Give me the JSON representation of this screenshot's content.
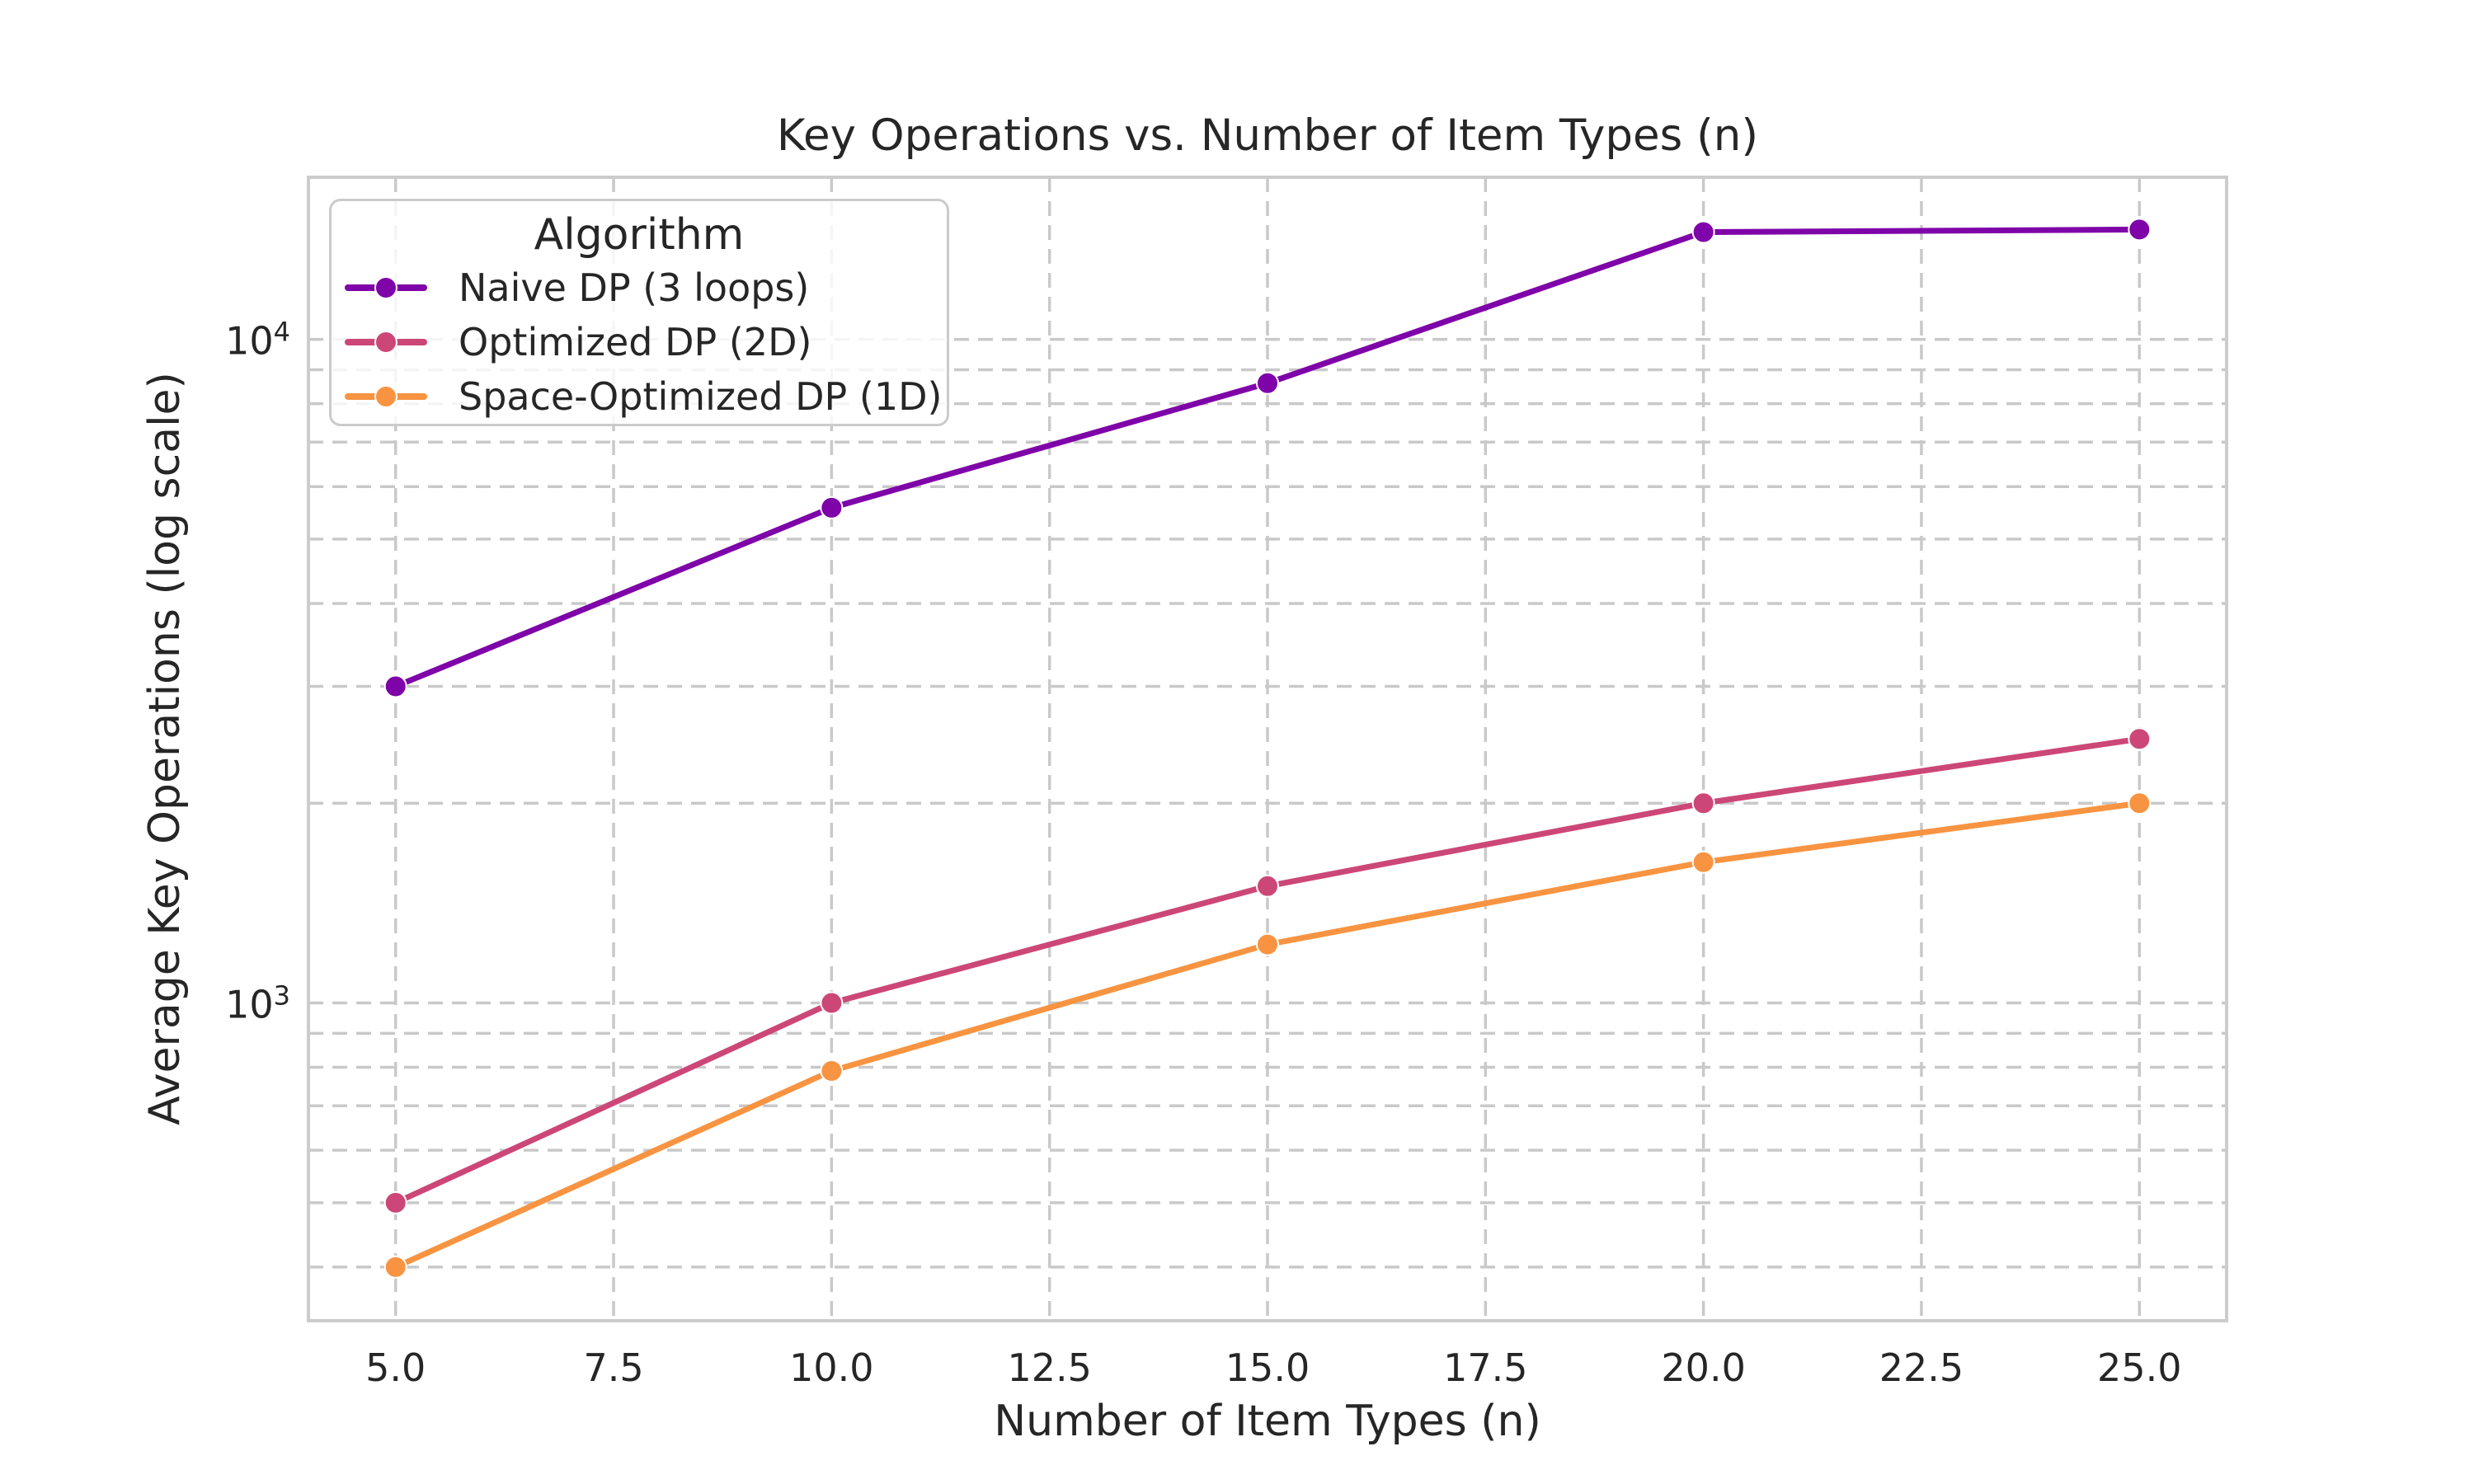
{
  "figure": {
    "title": "Key Operations vs. Number of Item Types (n)",
    "xlabel": "Number of Item Types (n)",
    "ylabel": "Average Key Operations (log scale)",
    "legend": {
      "title": "Algorithm",
      "entries": [
        "Naive DP (3 loops)",
        "Optimized DP (2D)",
        "Space-Optimized DP (1D)"
      ]
    }
  },
  "chart_data": {
    "type": "line",
    "title": "Key Operations vs. Number of Item Types (n)",
    "xlabel": "Number of Item Types (n)",
    "ylabel": "Average Key Operations (log scale)",
    "x": [
      5,
      10,
      15,
      20,
      25
    ],
    "series": [
      {
        "name": "Naive DP (3 loops)",
        "color": "#7e03a8",
        "values": [
          3000,
          5575,
          8590,
          14510,
          14640
        ]
      },
      {
        "name": "Optimized DP (2D)",
        "color": "#cc4778",
        "values": [
          500,
          1000,
          1500,
          2000,
          2500
        ]
      },
      {
        "name": "Space-Optimized DP (1D)",
        "color": "#f89441",
        "values": [
          400,
          790,
          1225,
          1630,
          2000
        ]
      }
    ],
    "x_tick_values": [
      5,
      7.5,
      10,
      12.5,
      15,
      17.5,
      20,
      22.5,
      25
    ],
    "x_tick_labels": [
      "5.0",
      "7.5",
      "10.0",
      "12.5",
      "15.0",
      "17.5",
      "20.0",
      "22.5",
      "25.0"
    ],
    "y_scale": "log",
    "y_ticks": [
      {
        "value": 1000,
        "label": "10³",
        "base": "10",
        "exp": "3"
      },
      {
        "value": 10000,
        "label": "10⁴",
        "base": "10",
        "exp": "4"
      }
    ],
    "xlim": [
      4,
      26
    ],
    "ylim": [
      332,
      17550
    ],
    "grid": {
      "which": "both",
      "style": "dashed",
      "color": "#c9c9c9"
    },
    "legend_position": "upper left",
    "colors": {
      "background": "#ffffff",
      "spine": "#cccccc",
      "text": "#262626"
    }
  }
}
